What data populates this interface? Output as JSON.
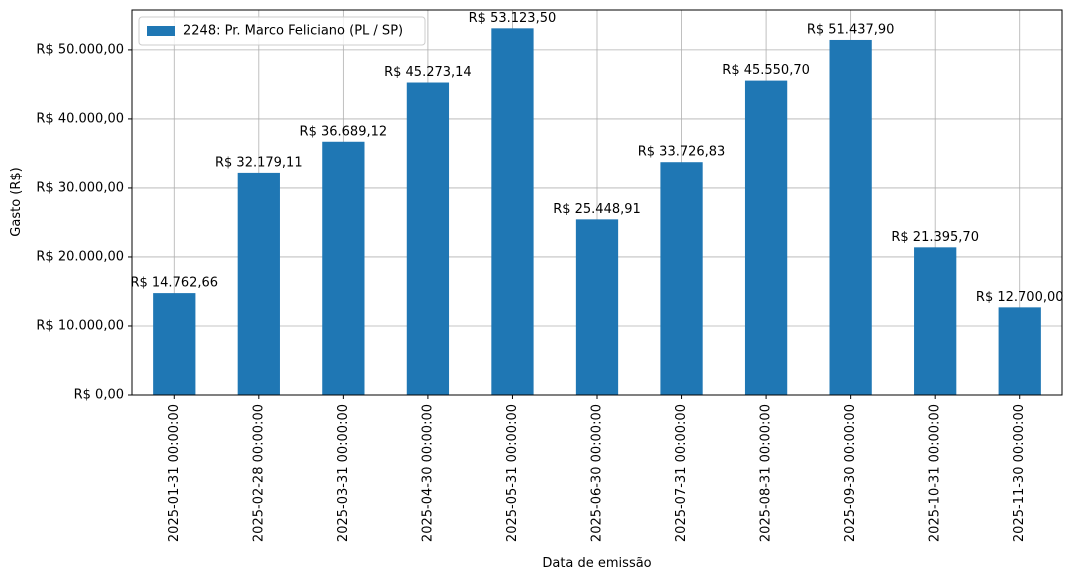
{
  "chart_data": {
    "type": "bar",
    "x_label": "Data de emissão",
    "y_label": "Gasto (R$)",
    "categories": [
      "2025-01-31 00:00:00",
      "2025-02-28 00:00:00",
      "2025-03-31 00:00:00",
      "2025-04-30 00:00:00",
      "2025-05-31 00:00:00",
      "2025-06-30 00:00:00",
      "2025-07-31 00:00:00",
      "2025-08-31 00:00:00",
      "2025-09-30 00:00:00",
      "2025-10-31 00:00:00",
      "2025-11-30 00:00:00"
    ],
    "series": [
      {
        "name": "2248: Pr. Marco Feliciano (PL / SP)",
        "color": "#1f77b4",
        "values": [
          14762.66,
          32179.11,
          36689.12,
          45273.14,
          53123.5,
          25448.91,
          33726.83,
          45550.7,
          51437.9,
          21395.7,
          12700.0
        ],
        "value_labels": [
          "R$ 14.762,66",
          "R$ 32.179,11",
          "R$ 36.689,12",
          "R$ 45.273,14",
          "R$ 53.123,50",
          "R$ 25.448,91",
          "R$ 33.726,83",
          "R$ 45.550,70",
          "R$ 51.437,90",
          "R$ 21.395,70",
          "R$ 12.700,00"
        ]
      }
    ],
    "ylim": [
      0,
      55780
    ],
    "yticks": [
      {
        "value": 0,
        "label": "R$ 0,00"
      },
      {
        "value": 10000,
        "label": "R$ 10.000,00"
      },
      {
        "value": 20000,
        "label": "R$ 20.000,00"
      },
      {
        "value": 30000,
        "label": "R$ 30.000,00"
      },
      {
        "value": 40000,
        "label": "R$ 40.000,00"
      },
      {
        "value": 50000,
        "label": "R$ 50.000,00"
      }
    ],
    "grid": true,
    "legend": "upper-left"
  }
}
